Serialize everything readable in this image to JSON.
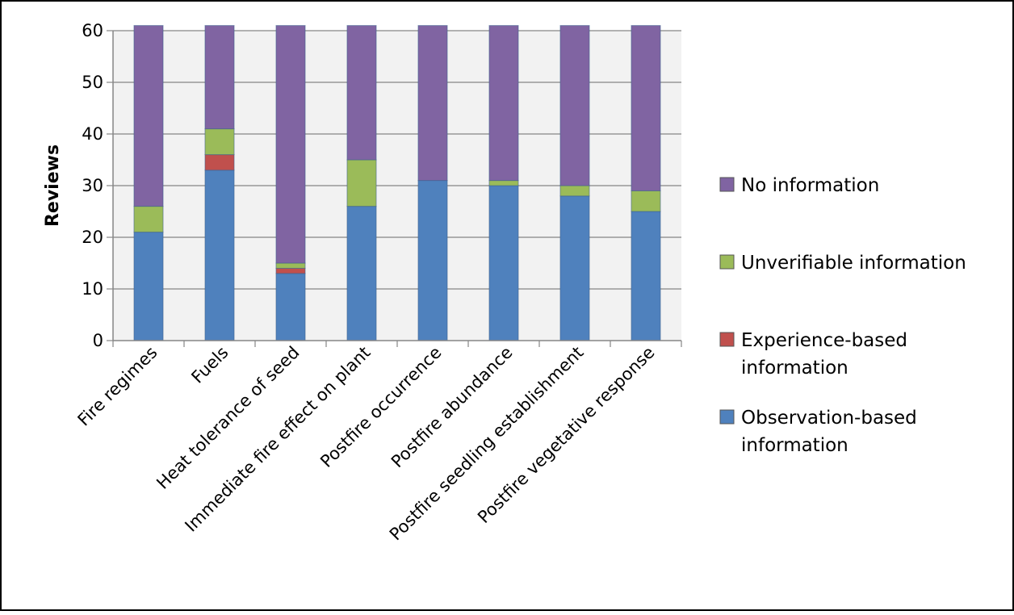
{
  "chart_data": {
    "type": "bar",
    "stacked": true,
    "title": "",
    "xlabel": "",
    "ylabel": "Reviews",
    "ylim": [
      0,
      60
    ],
    "yticks": [
      "0",
      "10",
      "20",
      "30",
      "40",
      "50",
      "60"
    ],
    "grid": true,
    "legend_position": "right",
    "categories": [
      "Fire regimes",
      "Fuels",
      "Heat tolerance of seed",
      "Immediate fire effect on plant",
      "Postfire occurrence",
      "Postfire abundance",
      "Postfire seedling establishment",
      "Postfire vegetative response"
    ],
    "series": [
      {
        "name": "Observation-based information",
        "color": "#4F81BD",
        "values": [
          21,
          33,
          13,
          26,
          31,
          30,
          28,
          25
        ]
      },
      {
        "name": "Experience-based information",
        "color": "#C0504D",
        "values": [
          0,
          3,
          1,
          0,
          0,
          0,
          0,
          0
        ]
      },
      {
        "name": "Unverifiable information",
        "color": "#9BBB59",
        "values": [
          5,
          5,
          1,
          9,
          0,
          1,
          2,
          4
        ]
      },
      {
        "name": "No information",
        "color": "#8064A2",
        "values": [
          35,
          20,
          46,
          26,
          30,
          30,
          31,
          32
        ]
      }
    ],
    "legend": [
      {
        "lines": [
          "No information"
        ],
        "color": "#8064A2"
      },
      {
        "lines": [
          "Unverifiable information"
        ],
        "color": "#9BBB59"
      },
      {
        "lines": [
          "Experience-based",
          "information"
        ],
        "color": "#C0504D"
      },
      {
        "lines": [
          "Observation-based",
          "information"
        ],
        "color": "#4F81BD"
      }
    ]
  }
}
